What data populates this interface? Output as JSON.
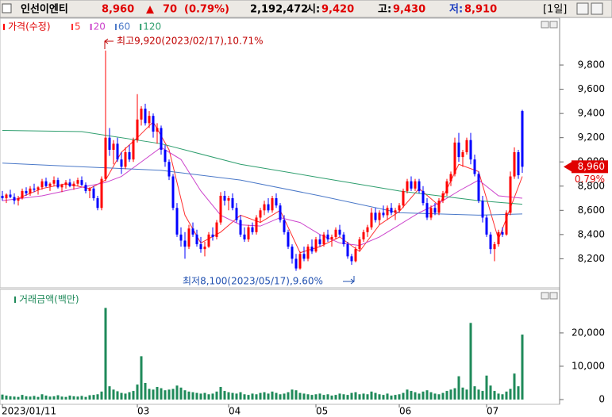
{
  "header": {
    "name": "인선이엔티",
    "price": "8,960",
    "arrow": "▲",
    "change": "70",
    "change_pct": "(0.79%)",
    "volume": "2,192,472",
    "open_label": "시:",
    "open": "9,420",
    "high_label": "고:",
    "high": "9,430",
    "low_label": "저:",
    "low": "8,910",
    "period": "[1일]"
  },
  "chart_data": [
    {
      "type": "candlestick",
      "legend_title": "가격(수정)",
      "up_color": "#ff0000",
      "down_color": "#0000ff",
      "ylim": [
        7980,
        10180
      ],
      "yticks": [
        {
          "value": 8200,
          "label": "8,200"
        },
        {
          "value": 8400,
          "label": "8,400"
        },
        {
          "value": 8600,
          "label": "8,600"
        },
        {
          "value": 8800,
          "label": "8,800"
        },
        {
          "value": 9000,
          "label": "9,000"
        },
        {
          "value": 9200,
          "label": "9,200"
        },
        {
          "value": 9400,
          "label": "9,400"
        },
        {
          "value": 9600,
          "label": "9,600"
        },
        {
          "value": 9800,
          "label": "9,800"
        }
      ],
      "annotations": [
        "최고9,920(2023/02/17),10.71%",
        "최저8,100(2023/05/17),9.60%"
      ],
      "last_price_label": "8,960",
      "last_change_label": "0.79%",
      "candles": [
        [
          8720,
          8760,
          8680,
          8700
        ],
        [
          8700,
          8740,
          8660,
          8730
        ],
        [
          8730,
          8770,
          8700,
          8710
        ],
        [
          8710,
          8740,
          8650,
          8680
        ],
        [
          8680,
          8720,
          8640,
          8700
        ],
        [
          8700,
          8780,
          8690,
          8760
        ],
        [
          8760,
          8790,
          8720,
          8740
        ],
        [
          8740,
          8800,
          8720,
          8780
        ],
        [
          8780,
          8820,
          8750,
          8770
        ],
        [
          8770,
          8800,
          8730,
          8790
        ],
        [
          8790,
          8860,
          8770,
          8840
        ],
        [
          8840,
          8870,
          8790,
          8800
        ],
        [
          8800,
          8830,
          8760,
          8820
        ],
        [
          8820,
          8880,
          8800,
          8850
        ],
        [
          8850,
          8870,
          8780,
          8790
        ],
        [
          8790,
          8820,
          8750,
          8810
        ],
        [
          8810,
          8850,
          8780,
          8830
        ],
        [
          8830,
          8860,
          8790,
          8800
        ],
        [
          8800,
          8840,
          8770,
          8820
        ],
        [
          8820,
          8870,
          8800,
          8850
        ],
        [
          8850,
          8880,
          8800,
          8810
        ],
        [
          8810,
          8830,
          8740,
          8760
        ],
        [
          8760,
          8790,
          8700,
          8780
        ],
        [
          8780,
          8800,
          8680,
          8700
        ],
        [
          8700,
          8720,
          8600,
          8620
        ],
        [
          8620,
          8880,
          8600,
          8860
        ],
        [
          8860,
          9920,
          8840,
          9200
        ],
        [
          9200,
          9280,
          9050,
          9100
        ],
        [
          9100,
          9180,
          8980,
          9150
        ],
        [
          9150,
          9200,
          9000,
          9020
        ],
        [
          9020,
          9080,
          8900,
          8960
        ],
        [
          8960,
          9120,
          8940,
          9080
        ],
        [
          9080,
          9140,
          9000,
          9020
        ],
        [
          9020,
          9200,
          9000,
          9180
        ],
        [
          9180,
          9560,
          9160,
          9350
        ],
        [
          9350,
          9460,
          9300,
          9440
        ],
        [
          9440,
          9480,
          9300,
          9320
        ],
        [
          9320,
          9420,
          9280,
          9380
        ],
        [
          9380,
          9400,
          9200,
          9250
        ],
        [
          9250,
          9320,
          9150,
          9280
        ],
        [
          9280,
          9300,
          9060,
          9100
        ],
        [
          9100,
          9140,
          8960,
          9000
        ],
        [
          9000,
          9020,
          8850,
          8880
        ],
        [
          8880,
          8900,
          8600,
          8620
        ],
        [
          8620,
          8660,
          8380,
          8400
        ],
        [
          8400,
          8460,
          8300,
          8350
        ],
        [
          8350,
          8420,
          8200,
          8300
        ],
        [
          8300,
          8480,
          8280,
          8450
        ],
        [
          8450,
          8500,
          8380,
          8400
        ],
        [
          8400,
          8440,
          8300,
          8320
        ],
        [
          8320,
          8380,
          8250,
          8280
        ],
        [
          8280,
          8340,
          8220,
          8300
        ],
        [
          8300,
          8420,
          8290,
          8400
        ],
        [
          8400,
          8460,
          8350,
          8380
        ],
        [
          8380,
          8520,
          8360,
          8500
        ],
        [
          8500,
          8750,
          8480,
          8720
        ],
        [
          8720,
          8760,
          8640,
          8680
        ],
        [
          8680,
          8720,
          8600,
          8700
        ],
        [
          8700,
          8740,
          8600,
          8620
        ],
        [
          8620,
          8660,
          8500,
          8520
        ],
        [
          8520,
          8560,
          8380,
          8400
        ],
        [
          8400,
          8460,
          8340,
          8360
        ],
        [
          8360,
          8480,
          8340,
          8460
        ],
        [
          8460,
          8500,
          8400,
          8420
        ],
        [
          8420,
          8560,
          8400,
          8540
        ],
        [
          8540,
          8620,
          8500,
          8600
        ],
        [
          8600,
          8680,
          8560,
          8650
        ],
        [
          8650,
          8700,
          8580,
          8600
        ],
        [
          8600,
          8720,
          8580,
          8700
        ],
        [
          8700,
          8740,
          8620,
          8640
        ],
        [
          8640,
          8660,
          8500,
          8520
        ],
        [
          8520,
          8560,
          8400,
          8420
        ],
        [
          8420,
          8440,
          8280,
          8300
        ],
        [
          8300,
          8320,
          8160,
          8200
        ],
        [
          8200,
          8240,
          8100,
          8120
        ],
        [
          8120,
          8260,
          8110,
          8240
        ],
        [
          8240,
          8300,
          8180,
          8200
        ],
        [
          8200,
          8320,
          8180,
          8300
        ],
        [
          8300,
          8360,
          8240,
          8260
        ],
        [
          8260,
          8380,
          8250,
          8360
        ],
        [
          8360,
          8400,
          8300,
          8320
        ],
        [
          8320,
          8420,
          8300,
          8400
        ],
        [
          8400,
          8440,
          8340,
          8360
        ],
        [
          8360,
          8400,
          8300,
          8380
        ],
        [
          8380,
          8460,
          8360,
          8440
        ],
        [
          8440,
          8480,
          8380,
          8400
        ],
        [
          8400,
          8420,
          8300,
          8320
        ],
        [
          8320,
          8340,
          8200,
          8220
        ],
        [
          8220,
          8240,
          8150,
          8180
        ],
        [
          8180,
          8300,
          8170,
          8280
        ],
        [
          8280,
          8380,
          8260,
          8360
        ],
        [
          8360,
          8440,
          8340,
          8420
        ],
        [
          8420,
          8480,
          8380,
          8460
        ],
        [
          8460,
          8620,
          8440,
          8580
        ],
        [
          8580,
          8620,
          8500,
          8520
        ],
        [
          8520,
          8600,
          8480,
          8580
        ],
        [
          8580,
          8640,
          8540,
          8560
        ],
        [
          8560,
          8640,
          8520,
          8620
        ],
        [
          8620,
          8660,
          8560,
          8580
        ],
        [
          8580,
          8620,
          8520,
          8600
        ],
        [
          8600,
          8660,
          8580,
          8640
        ],
        [
          8640,
          8780,
          8620,
          8760
        ],
        [
          8760,
          8860,
          8740,
          8840
        ],
        [
          8840,
          8880,
          8760,
          8780
        ],
        [
          8780,
          8860,
          8760,
          8840
        ],
        [
          8840,
          8860,
          8740,
          8760
        ],
        [
          8760,
          8800,
          8640,
          8660
        ],
        [
          8660,
          8700,
          8520,
          8540
        ],
        [
          8540,
          8640,
          8520,
          8620
        ],
        [
          8620,
          8660,
          8560,
          8580
        ],
        [
          8580,
          8700,
          8560,
          8680
        ],
        [
          8680,
          8760,
          8660,
          8740
        ],
        [
          8740,
          8860,
          8720,
          8840
        ],
        [
          8840,
          8920,
          8800,
          8900
        ],
        [
          8900,
          9200,
          8880,
          9160
        ],
        [
          9160,
          9240,
          9000,
          9040
        ],
        [
          9040,
          9100,
          8960,
          9080
        ],
        [
          9080,
          9200,
          9060,
          9180
        ],
        [
          9180,
          9240,
          8980,
          9020
        ],
        [
          9020,
          9060,
          8880,
          8900
        ],
        [
          8900,
          8920,
          8660,
          8680
        ],
        [
          8680,
          8720,
          8500,
          8540
        ],
        [
          8540,
          8560,
          8380,
          8400
        ],
        [
          8400,
          8420,
          8240,
          8280
        ],
        [
          8280,
          8340,
          8180,
          8320
        ],
        [
          8320,
          8440,
          8300,
          8420
        ],
        [
          8420,
          8460,
          8380,
          8400
        ],
        [
          8400,
          8600,
          8390,
          8580
        ],
        [
          8580,
          8920,
          8560,
          8880
        ],
        [
          8880,
          9120,
          8860,
          9080
        ],
        [
          9080,
          9100,
          8860,
          8890
        ],
        [
          9420,
          9430,
          8910,
          8960
        ]
      ],
      "moving_averages": [
        {
          "name": "5",
          "color": "#ff3030",
          "x": [
            4,
            10,
            16,
            22,
            26,
            30,
            34,
            38,
            42,
            46,
            50,
            55,
            60,
            65,
            70,
            75,
            80,
            85,
            90,
            95,
            100,
            105,
            110,
            115,
            120,
            125,
            131
          ],
          "values": [
            8700,
            8780,
            8820,
            8780,
            8850,
            9080,
            9200,
            9330,
            9100,
            8560,
            8330,
            8420,
            8560,
            8500,
            8600,
            8250,
            8300,
            8380,
            8260,
            8480,
            8590,
            8780,
            8640,
            8980,
            8920,
            8360,
            8880
          ]
        },
        {
          "name": "20",
          "color": "#cc44cc",
          "x": [
            0,
            10,
            20,
            26,
            30,
            35,
            40,
            45,
            50,
            55,
            60,
            65,
            70,
            75,
            80,
            85,
            90,
            95,
            100,
            105,
            110,
            115,
            120,
            125,
            131
          ],
          "values": [
            8680,
            8720,
            8790,
            8830,
            8880,
            9000,
            9120,
            9020,
            8760,
            8560,
            8480,
            8470,
            8540,
            8500,
            8400,
            8330,
            8310,
            8380,
            8480,
            8580,
            8660,
            8760,
            8850,
            8720,
            8700
          ]
        },
        {
          "name": "60",
          "color": "#4a78c8",
          "x": [
            0,
            20,
            40,
            60,
            80,
            100,
            120,
            131
          ],
          "values": [
            8990,
            8960,
            8930,
            8850,
            8720,
            8580,
            8560,
            8570
          ]
        },
        {
          "name": "120",
          "color": "#2e9e6e",
          "x": [
            0,
            20,
            40,
            60,
            80,
            100,
            120,
            131
          ],
          "values": [
            9260,
            9250,
            9150,
            8980,
            8870,
            8760,
            8680,
            8650
          ]
        }
      ]
    },
    {
      "type": "bar",
      "legend_title": "거래금액(백만)",
      "color": "#1f8a5a",
      "ylim": [
        0,
        29500
      ],
      "yticks": [
        0,
        {
          "value": 10000,
          "label": "10,000"
        },
        {
          "value": 20000,
          "label": "20,000"
        }
      ],
      "x_ticks": [
        {
          "index": 0,
          "label": "2023/01/11"
        },
        {
          "index": 34,
          "label": "03"
        },
        {
          "index": 57,
          "label": "04"
        },
        {
          "index": 79,
          "label": "05"
        },
        {
          "index": 100,
          "label": "06"
        },
        {
          "index": 122,
          "label": "07"
        }
      ],
      "values": [
        1500,
        1200,
        1000,
        900,
        800,
        1400,
        1000,
        900,
        1100,
        800,
        1600,
        1200,
        900,
        1000,
        1300,
        900,
        800,
        1200,
        1000,
        900,
        1100,
        800,
        1300,
        1400,
        1600,
        2400,
        27500,
        4000,
        3000,
        2500,
        2000,
        1800,
        2200,
        2600,
        4500,
        13000,
        5000,
        3200,
        3000,
        3800,
        3400,
        2800,
        3000,
        3200,
        4200,
        3600,
        2800,
        2400,
        2200,
        2000,
        1800,
        2000,
        1600,
        1800,
        2400,
        3800,
        2600,
        2200,
        2000,
        1800,
        2200,
        1600,
        1400,
        1800,
        1600,
        2000,
        2200,
        1800,
        2400,
        2000,
        1600,
        1800,
        2200,
        3000,
        2800,
        2000,
        1800,
        1600,
        1400,
        1600,
        1800,
        1400,
        1600,
        1200,
        1400,
        1800,
        1600,
        1400,
        2000,
        2200,
        1600,
        1800,
        1600,
        2400,
        2000,
        1600,
        1400,
        1800,
        1200,
        1400,
        1600,
        2000,
        3000,
        2600,
        2200,
        1800,
        2400,
        2800,
        2200,
        1800,
        1600,
        2000,
        2600,
        3000,
        3400,
        7000,
        3600,
        3000,
        23000,
        4000,
        3000,
        2600,
        7200,
        4200,
        2600,
        1800,
        1600,
        2400,
        3200,
        7800,
        4000,
        19500
      ]
    }
  ]
}
